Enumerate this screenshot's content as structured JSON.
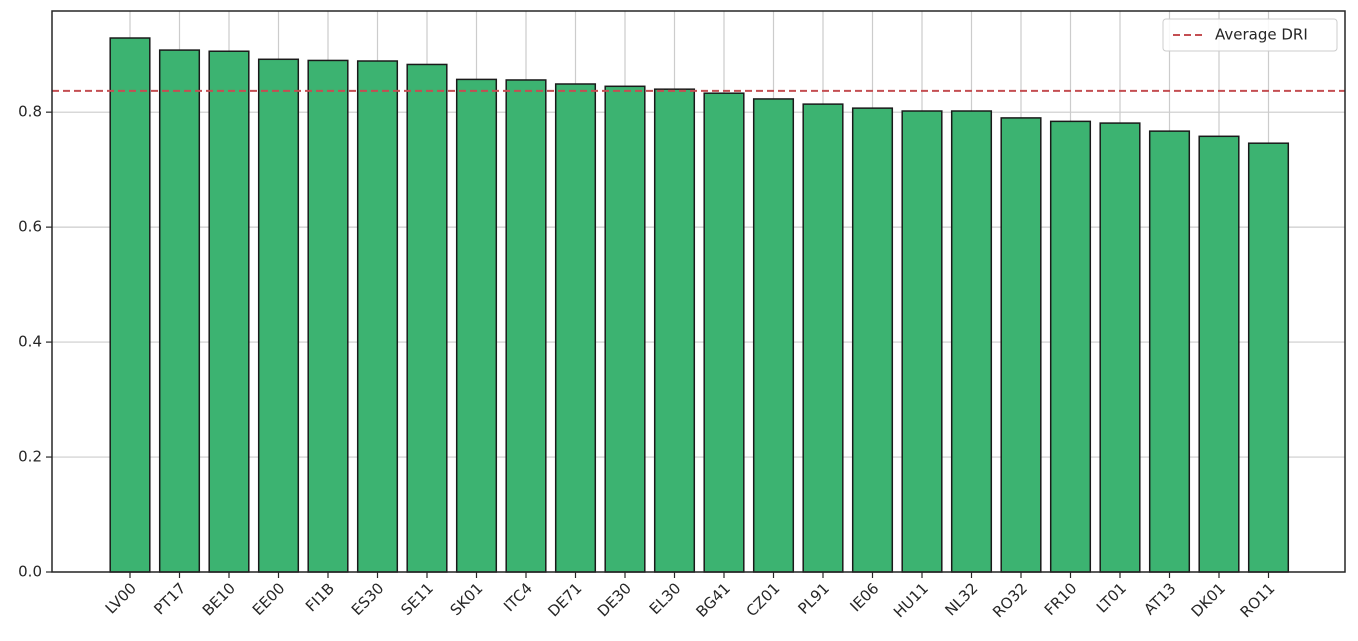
{
  "chart_data": {
    "type": "bar",
    "categories": [
      "LV00",
      "PT17",
      "BE10",
      "EE00",
      "FI1B",
      "ES30",
      "SE11",
      "SK01",
      "ITC4",
      "DE71",
      "DE30",
      "EL30",
      "BG41",
      "CZ01",
      "PL91",
      "IE06",
      "HU11",
      "NL32",
      "RO32",
      "FR10",
      "LT01",
      "AT13",
      "DK01",
      "RO11"
    ],
    "values": [
      0.929,
      0.908,
      0.906,
      0.892,
      0.89,
      0.889,
      0.883,
      0.857,
      0.856,
      0.849,
      0.845,
      0.84,
      0.833,
      0.823,
      0.814,
      0.807,
      0.802,
      0.802,
      0.79,
      0.784,
      0.781,
      0.767,
      0.758,
      0.746
    ],
    "color": "#3cb371",
    "edgecolor": "#1a1a1a",
    "ylim": [
      0,
      0.976
    ],
    "yticks": [
      {
        "value": 0,
        "label": "0.0"
      },
      0.2,
      0.4,
      0.6,
      0.8
    ],
    "grid": true,
    "average": {
      "name": "Average DRI",
      "value": 0.837,
      "color": "#c44e52"
    },
    "legend": "upper right"
  }
}
